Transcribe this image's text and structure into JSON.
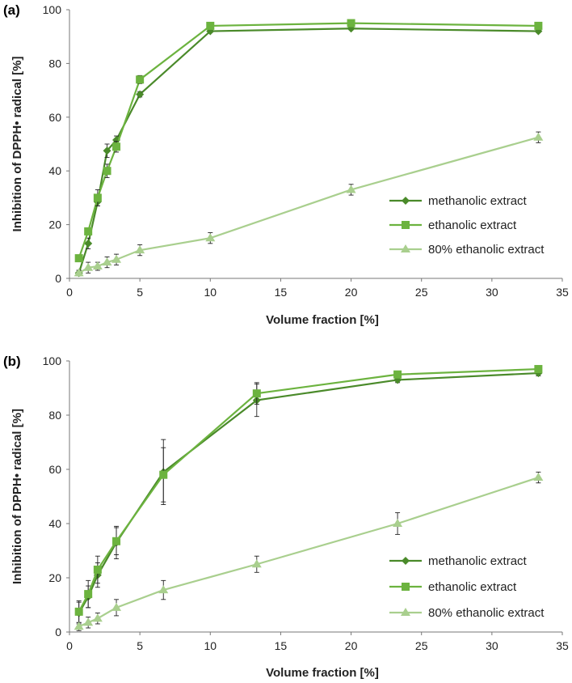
{
  "chart_data": [
    {
      "type": "line",
      "panel_label": "(a)",
      "xlabel": "Volume fraction [%]",
      "ylabel": "Inhibition of DPPH• radical [%]",
      "xlim": [
        0,
        35
      ],
      "ylim": [
        0,
        100
      ],
      "xticks": [
        "0",
        "5",
        "10",
        "15",
        "20",
        "25",
        "30",
        "35"
      ],
      "yticks": [
        "0",
        "20",
        "40",
        "60",
        "80",
        "100"
      ],
      "grid": false,
      "legend_position": "right",
      "series": [
        {
          "name": "methanolic extract",
          "color": "#4a8a2a",
          "marker": "diamond",
          "x": [
            0.67,
            1.33,
            2.0,
            2.67,
            3.33,
            5.0,
            10.0,
            20.0,
            33.3
          ],
          "y": [
            2,
            13,
            28.5,
            47.5,
            51.5,
            68.5,
            92,
            93,
            92
          ],
          "err": [
            1,
            2,
            1.5,
            2.5,
            1.5,
            1,
            0.5,
            0.5,
            0.5
          ]
        },
        {
          "name": "ethanolic extract",
          "color": "#6cb33f",
          "marker": "square",
          "x": [
            0.67,
            1.33,
            2.0,
            2.67,
            3.33,
            5.0,
            10.0,
            20.0,
            33.3
          ],
          "y": [
            7.5,
            17.5,
            30,
            40,
            49,
            74,
            94,
            95,
            94
          ],
          "err": [
            1,
            1,
            3,
            2.5,
            2,
            1.5,
            0.5,
            0.5,
            0.5
          ]
        },
        {
          "name": "80% ethanolic extract",
          "color": "#a9cf8e",
          "marker": "triangle",
          "x": [
            0.67,
            1.33,
            2.0,
            2.67,
            3.33,
            5.0,
            10.0,
            20.0,
            33.3
          ],
          "y": [
            2,
            4,
            4.5,
            6,
            7,
            10.5,
            15,
            33,
            52.5
          ],
          "err": [
            1,
            2,
            1.5,
            2,
            2,
            2,
            2,
            2,
            2
          ]
        }
      ]
    },
    {
      "type": "line",
      "panel_label": "(b)",
      "xlabel": "Volume fraction [%]",
      "ylabel": "Inhibition of DPPH• radical [%]",
      "xlim": [
        0,
        35
      ],
      "ylim": [
        0,
        100
      ],
      "xticks": [
        "0",
        "5",
        "10",
        "15",
        "20",
        "25",
        "30",
        "35"
      ],
      "yticks": [
        "0",
        "20",
        "40",
        "60",
        "80",
        "100"
      ],
      "grid": false,
      "legend_position": "bottom-right",
      "series": [
        {
          "name": "methanolic extract",
          "color": "#4a8a2a",
          "marker": "diamond",
          "x": [
            0.67,
            1.33,
            2.0,
            3.33,
            6.67,
            13.3,
            23.3,
            33.3
          ],
          "y": [
            7,
            13,
            21,
            33,
            59,
            85.5,
            93,
            95.5
          ],
          "err": [
            4,
            4,
            4.5,
            6,
            12,
            6,
            1,
            1
          ]
        },
        {
          "name": "ethanolic extract",
          "color": "#6cb33f",
          "marker": "square",
          "x": [
            0.67,
            1.33,
            2.0,
            3.33,
            6.67,
            13.3,
            23.3,
            33.3
          ],
          "y": [
            7.5,
            14,
            23,
            33.5,
            58,
            88,
            95,
            97
          ],
          "err": [
            4,
            5,
            5,
            5,
            10,
            4,
            1,
            1
          ]
        },
        {
          "name": "80% ethanolic extract",
          "color": "#a9cf8e",
          "marker": "triangle",
          "x": [
            0.67,
            1.33,
            2.0,
            3.33,
            6.67,
            13.3,
            23.3,
            33.3
          ],
          "y": [
            2,
            3.5,
            5,
            9,
            15.5,
            25,
            40,
            57
          ],
          "err": [
            1.5,
            2,
            2,
            3,
            3.5,
            3,
            4,
            2
          ]
        }
      ]
    }
  ]
}
